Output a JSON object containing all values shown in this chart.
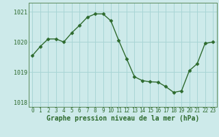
{
  "x": [
    0,
    1,
    2,
    3,
    4,
    5,
    6,
    7,
    8,
    9,
    10,
    11,
    12,
    13,
    14,
    15,
    16,
    17,
    18,
    19,
    20,
    21,
    22,
    23
  ],
  "y": [
    1019.55,
    1019.85,
    1020.1,
    1020.1,
    1020.0,
    1020.3,
    1020.55,
    1020.82,
    1020.93,
    1020.93,
    1020.7,
    1020.05,
    1019.45,
    1018.85,
    1018.72,
    1018.68,
    1018.67,
    1018.52,
    1018.33,
    1018.38,
    1019.05,
    1019.28,
    1019.95,
    1020.0
  ],
  "line_color": "#2d6a2d",
  "marker": "D",
  "marker_size": 2.5,
  "bg_color": "#cdeaea",
  "grid_color": "#a8d5d5",
  "xlabel": "Graphe pression niveau de la mer (hPa)",
  "xlabel_color": "#2d6a2d",
  "yticks": [
    1018,
    1019,
    1020,
    1021
  ],
  "ylim": [
    1017.85,
    1021.3
  ],
  "xlim": [
    -0.5,
    23.5
  ],
  "xticks": [
    0,
    1,
    2,
    3,
    4,
    5,
    6,
    7,
    8,
    9,
    10,
    11,
    12,
    13,
    14,
    15,
    16,
    17,
    18,
    19,
    20,
    21,
    22,
    23
  ],
  "tick_fontsize": 5.5,
  "ytick_fontsize": 6.0,
  "xlabel_fontsize": 7.0,
  "linewidth": 1.0
}
